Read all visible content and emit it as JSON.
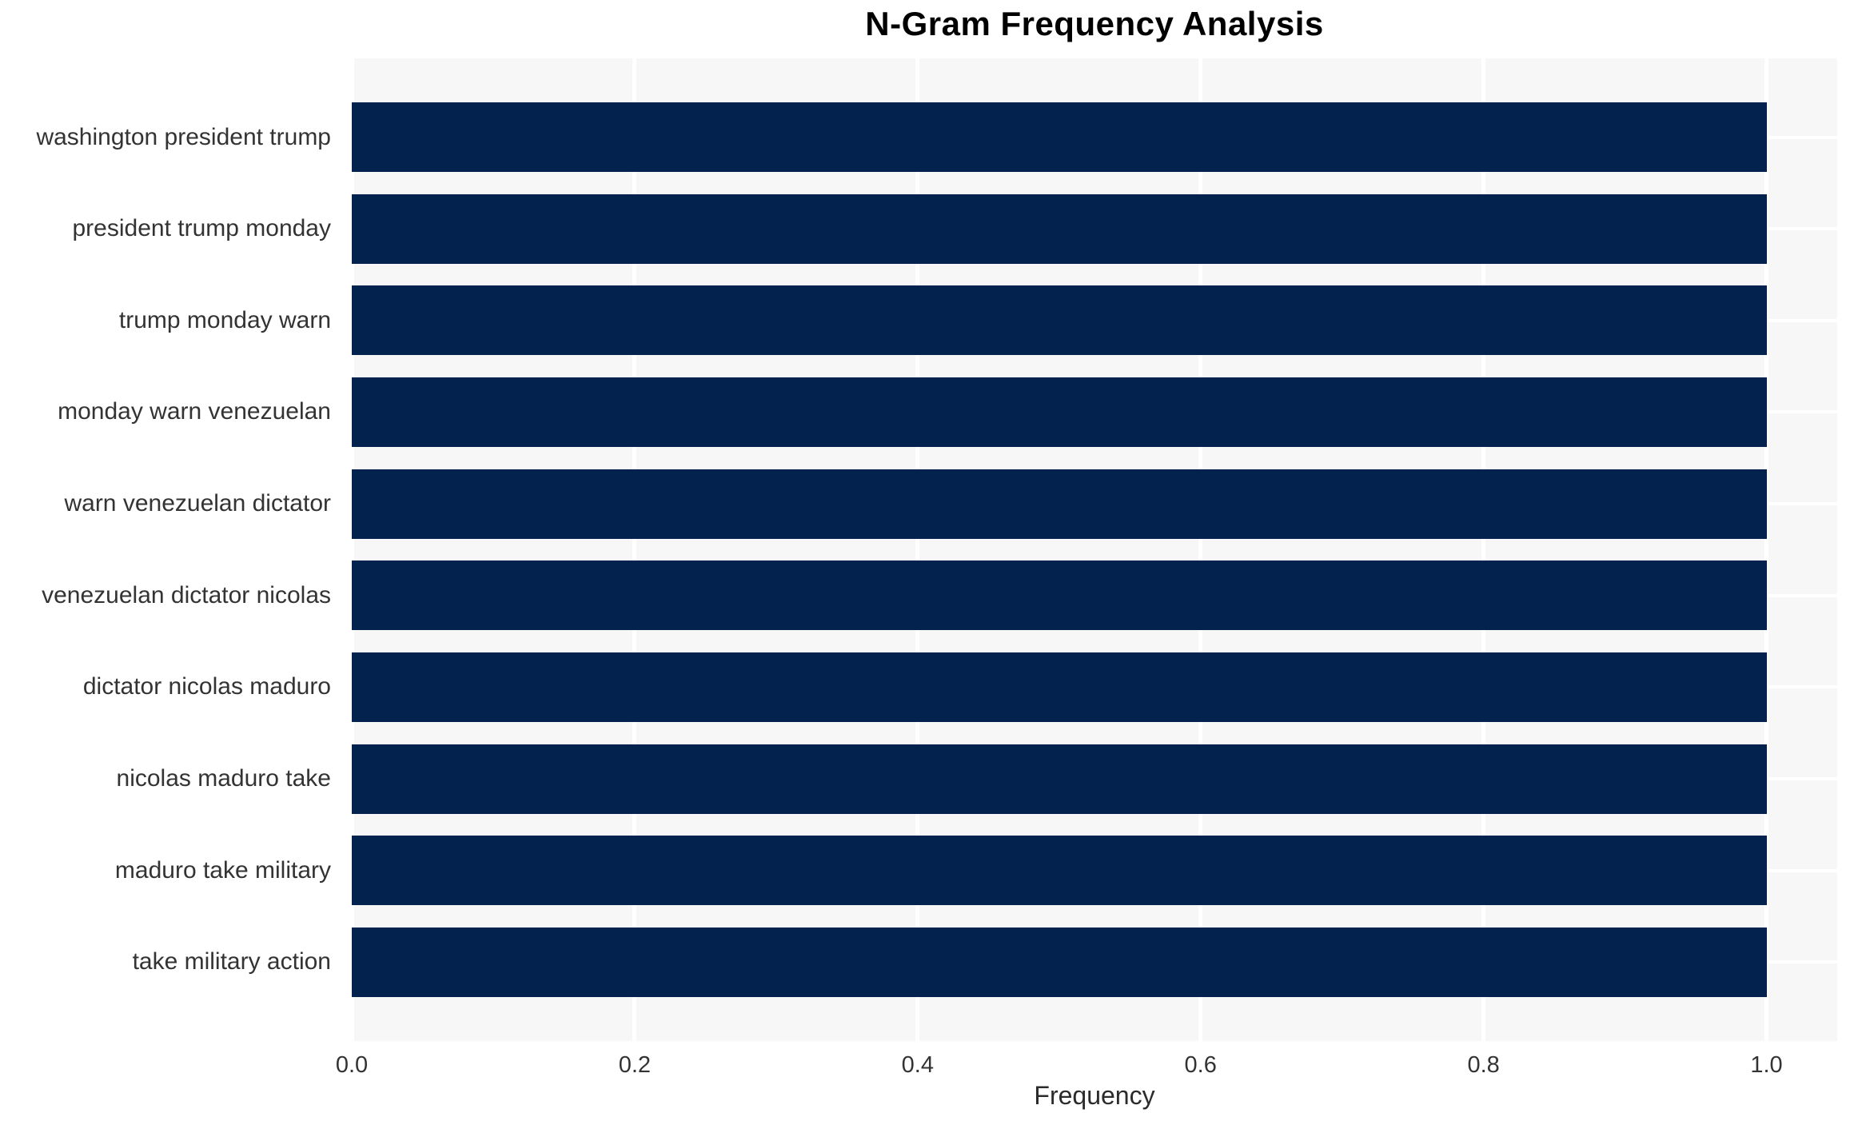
{
  "chart_data": {
    "type": "bar",
    "orientation": "horizontal",
    "title": "N-Gram Frequency Analysis",
    "xlabel": "Frequency",
    "ylabel": "",
    "categories": [
      "washington president trump",
      "president trump monday",
      "trump monday warn",
      "monday warn venezuelan",
      "warn venezuelan dictator",
      "venezuelan dictator nicolas",
      "dictator nicolas maduro",
      "nicolas maduro take",
      "maduro take military",
      "take military action"
    ],
    "values": [
      1.0,
      1.0,
      1.0,
      1.0,
      1.0,
      1.0,
      1.0,
      1.0,
      1.0,
      1.0
    ],
    "xticks": [
      0.0,
      0.2,
      0.4,
      0.6,
      0.8,
      1.0
    ],
    "xtick_labels": [
      "0.0",
      "0.2",
      "0.4",
      "0.6",
      "0.8",
      "1.0"
    ],
    "xlim": [
      0,
      1.05
    ],
    "grid": true,
    "legend": false,
    "colors": {
      "bar": "#03234e",
      "plot_background": "#f7f7f8",
      "gridline": "#ffffff",
      "tick_text": "#333333",
      "title_text": "#000000"
    }
  }
}
